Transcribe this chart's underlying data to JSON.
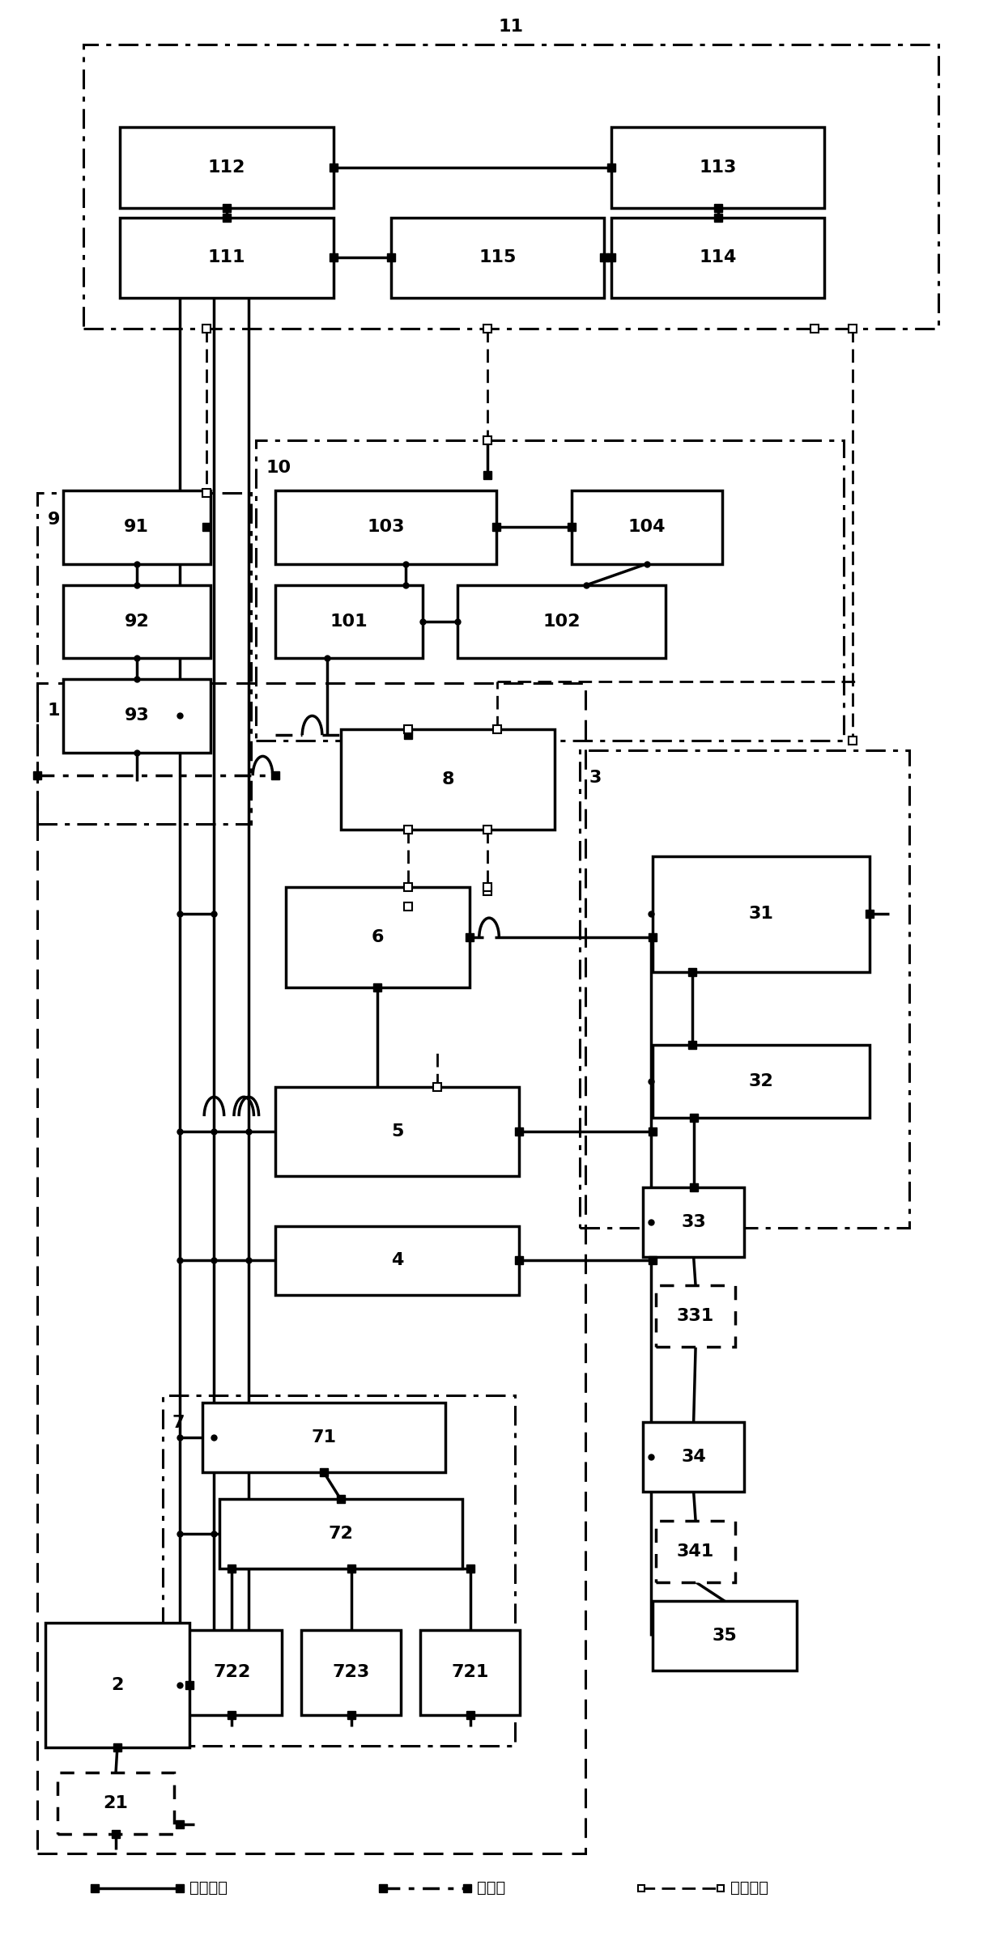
{
  "figsize": [
    12.4,
    23.92
  ],
  "dpi": 100,
  "boxes": {
    "112": [
      0.115,
      0.895,
      0.215,
      0.042
    ],
    "113": [
      0.61,
      0.895,
      0.215,
      0.042
    ],
    "111": [
      0.115,
      0.848,
      0.215,
      0.042
    ],
    "115": [
      0.388,
      0.848,
      0.215,
      0.042
    ],
    "114": [
      0.61,
      0.848,
      0.215,
      0.042
    ],
    "91": [
      0.058,
      0.71,
      0.148,
      0.038
    ],
    "92": [
      0.058,
      0.661,
      0.148,
      0.038
    ],
    "93": [
      0.058,
      0.612,
      0.148,
      0.038
    ],
    "103": [
      0.272,
      0.71,
      0.222,
      0.038
    ],
    "104": [
      0.57,
      0.71,
      0.152,
      0.038
    ],
    "101": [
      0.272,
      0.661,
      0.148,
      0.038
    ],
    "102": [
      0.455,
      0.661,
      0.21,
      0.038
    ],
    "8": [
      0.338,
      0.572,
      0.215,
      0.052
    ],
    "6": [
      0.282,
      0.49,
      0.185,
      0.052
    ],
    "31": [
      0.652,
      0.498,
      0.218,
      0.06
    ],
    "32": [
      0.652,
      0.422,
      0.218,
      0.038
    ],
    "33": [
      0.642,
      0.35,
      0.102,
      0.036
    ],
    "331": [
      0.655,
      0.303,
      0.08,
      0.032
    ],
    "34": [
      0.642,
      0.228,
      0.102,
      0.036
    ],
    "341": [
      0.655,
      0.181,
      0.08,
      0.032
    ],
    "35": [
      0.652,
      0.135,
      0.145,
      0.036
    ],
    "5": [
      0.272,
      0.392,
      0.245,
      0.046
    ],
    "4": [
      0.272,
      0.33,
      0.245,
      0.036
    ],
    "71": [
      0.198,
      0.238,
      0.245,
      0.036
    ],
    "72": [
      0.215,
      0.188,
      0.245,
      0.036
    ],
    "722": [
      0.178,
      0.112,
      0.1,
      0.044
    ],
    "723": [
      0.298,
      0.112,
      0.1,
      0.044
    ],
    "721": [
      0.418,
      0.112,
      0.1,
      0.044
    ],
    "2": [
      0.04,
      0.095,
      0.145,
      0.065
    ],
    "21": [
      0.052,
      0.05,
      0.118,
      0.032
    ]
  },
  "groups": {
    "11": [
      0.078,
      0.832,
      0.862,
      0.148
    ],
    "9": [
      0.032,
      0.575,
      0.215,
      0.172
    ],
    "10": [
      0.252,
      0.618,
      0.592,
      0.156
    ],
    "1": [
      0.032,
      0.04,
      0.552,
      0.608
    ],
    "3": [
      0.578,
      0.365,
      0.332,
      0.248
    ],
    "7": [
      0.158,
      0.096,
      0.355,
      0.182
    ]
  },
  "lw": 2.5,
  "blw": 2.5,
  "fs": 16,
  "leg_fs": 14,
  "ns": 7,
  "cs": 6
}
